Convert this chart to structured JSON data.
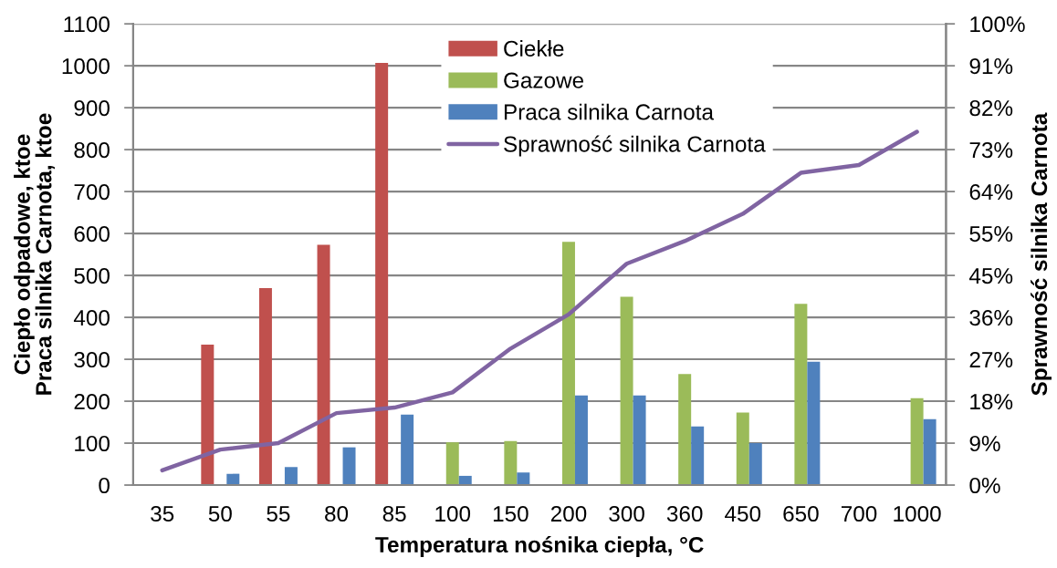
{
  "chart_data": {
    "type": "bar",
    "xlabel": "Temperatura nośnika ciepła, °C",
    "ylabel": "Ciepło odpadowe, ktoe\nPraca silnika Carnota, ktoe",
    "y2label": "Sprawność silnika Carnota",
    "categories": [
      "35",
      "50",
      "55",
      "80",
      "85",
      "100",
      "150",
      "200",
      "300",
      "360",
      "450",
      "650",
      "700",
      "1000"
    ],
    "ylim": [
      0,
      1100
    ],
    "yticks": [
      0,
      100,
      200,
      300,
      400,
      500,
      600,
      700,
      800,
      900,
      1000,
      1100
    ],
    "y2lim": [
      0,
      100
    ],
    "y2ticks": [
      {
        "value": 0,
        "label": "0%"
      },
      {
        "value": 9.09,
        "label": "9%"
      },
      {
        "value": 18.18,
        "label": "18%"
      },
      {
        "value": 27.27,
        "label": "27%"
      },
      {
        "value": 36.36,
        "label": "36%"
      },
      {
        "value": 45.45,
        "label": "45%"
      },
      {
        "value": 54.55,
        "label": "55%"
      },
      {
        "value": 63.64,
        "label": "64%"
      },
      {
        "value": 72.73,
        "label": "73%"
      },
      {
        "value": 81.82,
        "label": "82%"
      },
      {
        "value": 90.91,
        "label": "91%"
      },
      {
        "value": 100,
        "label": "100%"
      }
    ],
    "grid": "y",
    "legend": "top",
    "series": [
      {
        "name": "Ciekłe",
        "color": "#c0504d",
        "values": [
          null,
          335,
          470,
          573,
          1007,
          null,
          null,
          null,
          null,
          null,
          null,
          null,
          null,
          null
        ]
      },
      {
        "name": "Gazowe",
        "color": "#9bbb59",
        "values": [
          null,
          null,
          null,
          null,
          null,
          102,
          105,
          580,
          449,
          265,
          173,
          432,
          null,
          207
        ]
      },
      {
        "name": "Praca silnika Carnota",
        "color": "#4f81bd",
        "values": [
          null,
          27,
          43,
          90,
          168,
          22,
          30,
          214,
          214,
          140,
          100,
          294,
          null,
          157
        ]
      },
      {
        "name": "Sprawność silnika Carnota",
        "type": "line",
        "axis": "y2",
        "color": "#8064a2",
        "values": [
          3.2,
          7.7,
          9.1,
          15.6,
          16.8,
          20.1,
          29.6,
          37.0,
          48.0,
          52.9,
          58.8,
          67.7,
          69.4,
          76.6
        ]
      }
    ]
  }
}
